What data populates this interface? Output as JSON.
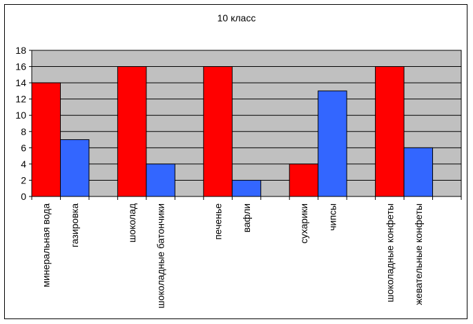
{
  "chart_data": {
    "type": "bar",
    "title": "10 класс",
    "xlabel": "",
    "ylabel": "",
    "ylim": [
      0,
      18
    ],
    "yticks": [
      0,
      2,
      4,
      6,
      8,
      10,
      12,
      14,
      16,
      18
    ],
    "grid": true,
    "colors": {
      "red": "#ff0000",
      "blue": "#3366ff",
      "plot_bg": "#c0c0c0"
    },
    "bars": [
      {
        "label": "минеральная вода",
        "value": 14,
        "color": "red",
        "group": 0,
        "slot": 0
      },
      {
        "label": "газировка",
        "value": 7,
        "color": "blue",
        "group": 0,
        "slot": 1
      },
      {
        "label": "шоколад",
        "value": 16,
        "color": "red",
        "group": 1,
        "slot": 0
      },
      {
        "label": "шоколадные батончики",
        "value": 4,
        "color": "blue",
        "group": 1,
        "slot": 1
      },
      {
        "label": "печенье",
        "value": 16,
        "color": "red",
        "group": 2,
        "slot": 0
      },
      {
        "label": "вафли",
        "value": 2,
        "color": "blue",
        "group": 2,
        "slot": 1
      },
      {
        "label": "сухарики",
        "value": 4,
        "color": "red",
        "group": 3,
        "slot": 0
      },
      {
        "label": "чипсы",
        "value": 13,
        "color": "blue",
        "group": 3,
        "slot": 1
      },
      {
        "label": "шоколадные конфеты",
        "value": 16,
        "color": "red",
        "group": 4,
        "slot": 0
      },
      {
        "label": "жевательные конфеты",
        "value": 6,
        "color": "blue",
        "group": 4,
        "slot": 1
      }
    ]
  }
}
